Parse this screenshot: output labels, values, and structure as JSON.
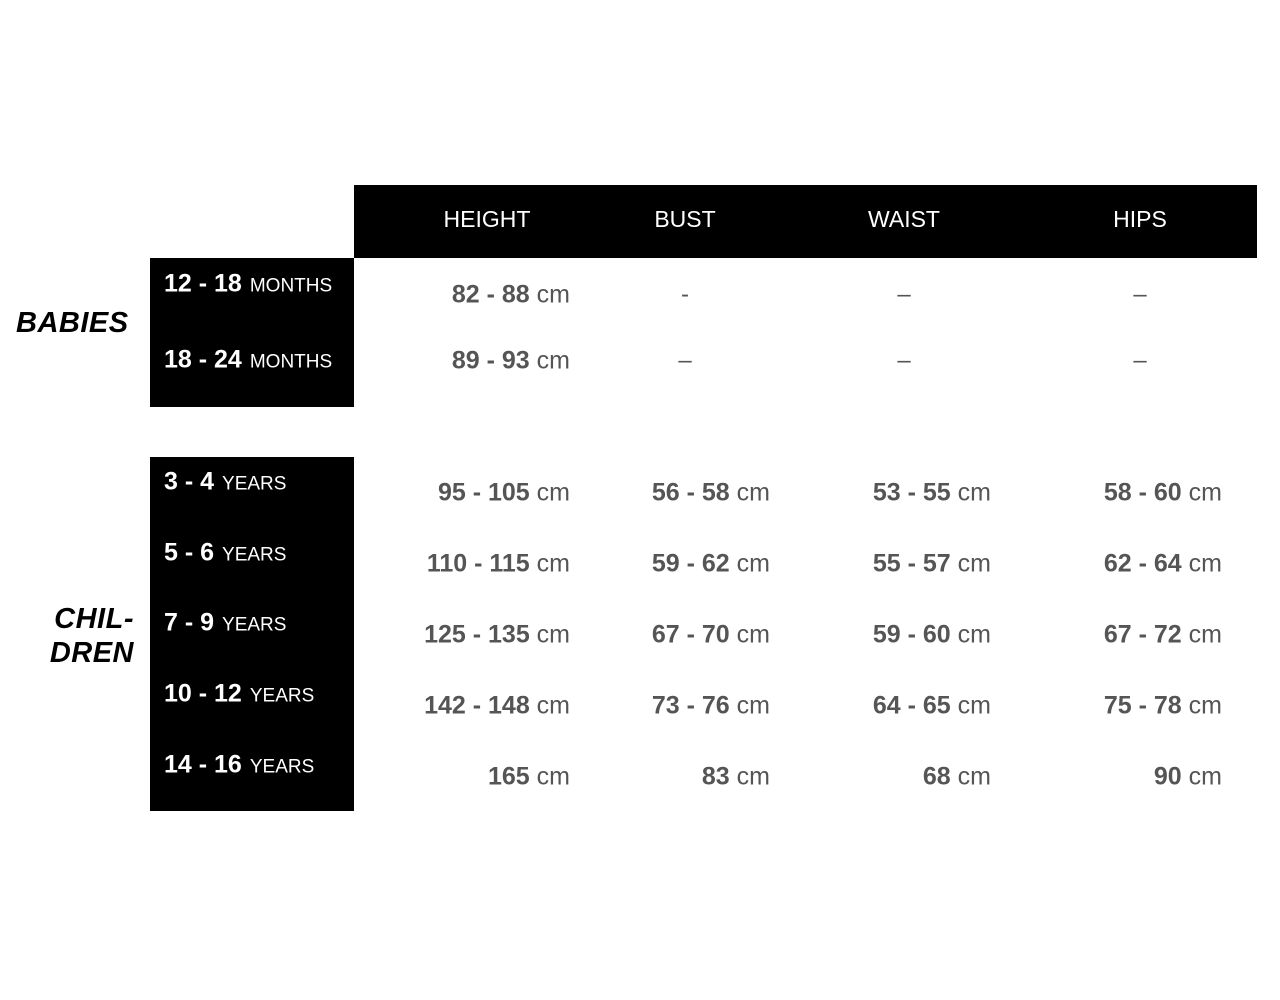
{
  "columns": [
    "HEIGHT",
    "BUST",
    "WAIST",
    "HIPS"
  ],
  "groups": {
    "babies": {
      "label": "BABIES",
      "rows": [
        {
          "range": "12 - 18",
          "unit": "MONTHS",
          "values": [
            {
              "num": "82 - 88",
              "unit": "cm"
            },
            "-",
            "–",
            "–"
          ]
        },
        {
          "range": "18 - 24",
          "unit": "MONTHS",
          "values": [
            {
              "num": "89 - 93",
              "unit": "cm"
            },
            "–",
            "–",
            "–"
          ]
        }
      ]
    },
    "children": {
      "label_line1": "CHIL-",
      "label_line2": "DREN",
      "rows": [
        {
          "range": "3 - 4",
          "unit": "YEARS",
          "values": [
            {
              "num": "95 - 105",
              "unit": "cm"
            },
            {
              "num": "56 - 58",
              "unit": "cm"
            },
            {
              "num": "53 - 55",
              "unit": "cm"
            },
            {
              "num": "58 - 60",
              "unit": "cm"
            }
          ]
        },
        {
          "range": "5 - 6",
          "unit": "YEARS",
          "values": [
            {
              "num": "110 - 115",
              "unit": "cm"
            },
            {
              "num": "59 - 62",
              "unit": "cm"
            },
            {
              "num": "55 - 57",
              "unit": "cm"
            },
            {
              "num": "62 - 64",
              "unit": "cm"
            }
          ]
        },
        {
          "range": "7 - 9",
          "unit": "YEARS",
          "values": [
            {
              "num": "125 - 135",
              "unit": "cm"
            },
            {
              "num": "67 - 70",
              "unit": "cm"
            },
            {
              "num": "59 - 60",
              "unit": "cm"
            },
            {
              "num": "67 - 72",
              "unit": "cm"
            }
          ]
        },
        {
          "range": "10 - 12",
          "unit": "YEARS",
          "values": [
            {
              "num": "142 - 148",
              "unit": "cm"
            },
            {
              "num": "73 - 76",
              "unit": "cm"
            },
            {
              "num": "64 - 65",
              "unit": "cm"
            },
            {
              "num": "75 - 78",
              "unit": "cm"
            }
          ]
        },
        {
          "range": "14 - 16",
          "unit": "YEARS",
          "values": [
            {
              "num": "165",
              "unit": "cm"
            },
            {
              "num": "83",
              "unit": "cm"
            },
            {
              "num": "68",
              "unit": "cm"
            },
            {
              "num": "90",
              "unit": "cm"
            }
          ]
        }
      ]
    }
  },
  "colors": {
    "band": "#000000",
    "value_text": "#555555",
    "band_text": "#ffffff"
  }
}
